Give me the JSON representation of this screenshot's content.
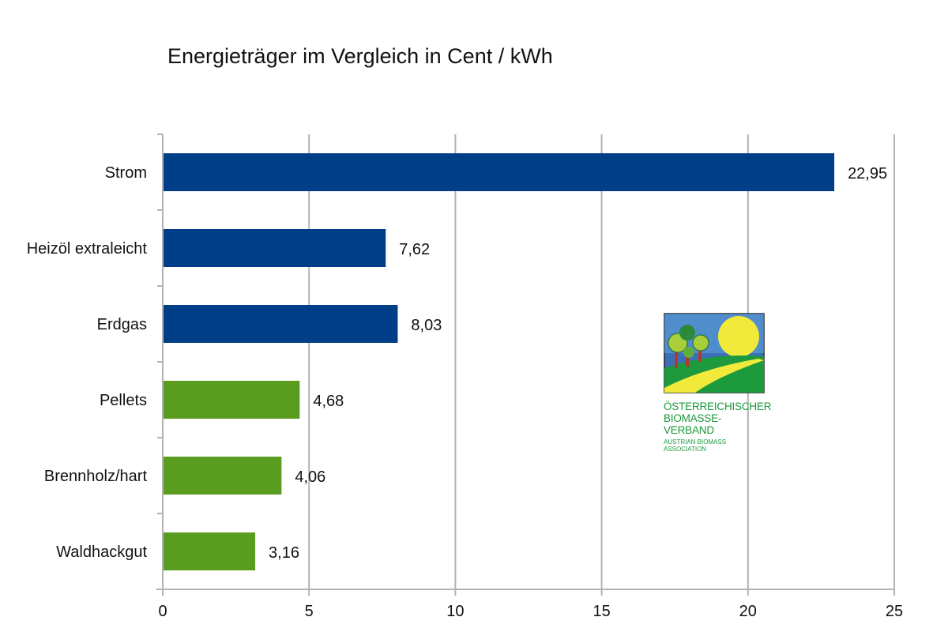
{
  "chart_data": {
    "type": "bar",
    "orientation": "horizontal",
    "title": "Energieträger im Vergleich in Cent / kWh",
    "categories": [
      "Strom",
      "Heizöl extraleicht",
      "Erdgas",
      "Pellets",
      "Brennholz/hart",
      "Waldhackgut"
    ],
    "values": [
      22.95,
      7.62,
      8.03,
      4.68,
      4.06,
      3.16
    ],
    "data_labels": [
      "22,95",
      "7,62",
      "8,03",
      "4,68",
      "4,06",
      "3,16"
    ],
    "bar_colors": [
      "#003f87",
      "#003f87",
      "#003f87",
      "#5a9c1f",
      "#5a9c1f",
      "#5a9c1f"
    ],
    "xlim": [
      0,
      25
    ],
    "x_ticks": [
      0,
      5,
      10,
      15,
      20,
      25
    ],
    "x_tick_labels": [
      "0",
      "5",
      "10",
      "15",
      "20",
      "25"
    ],
    "xlabel": "",
    "ylabel": "",
    "grid": "vertical",
    "grid_color": "#b3b3b3"
  },
  "logo": {
    "line1": "ÖSTERREICHISCHER",
    "line2": "BIOMASSE-VERBAND",
    "line3": "AUSTRIAN BIOMASS ASSOCIATION"
  }
}
